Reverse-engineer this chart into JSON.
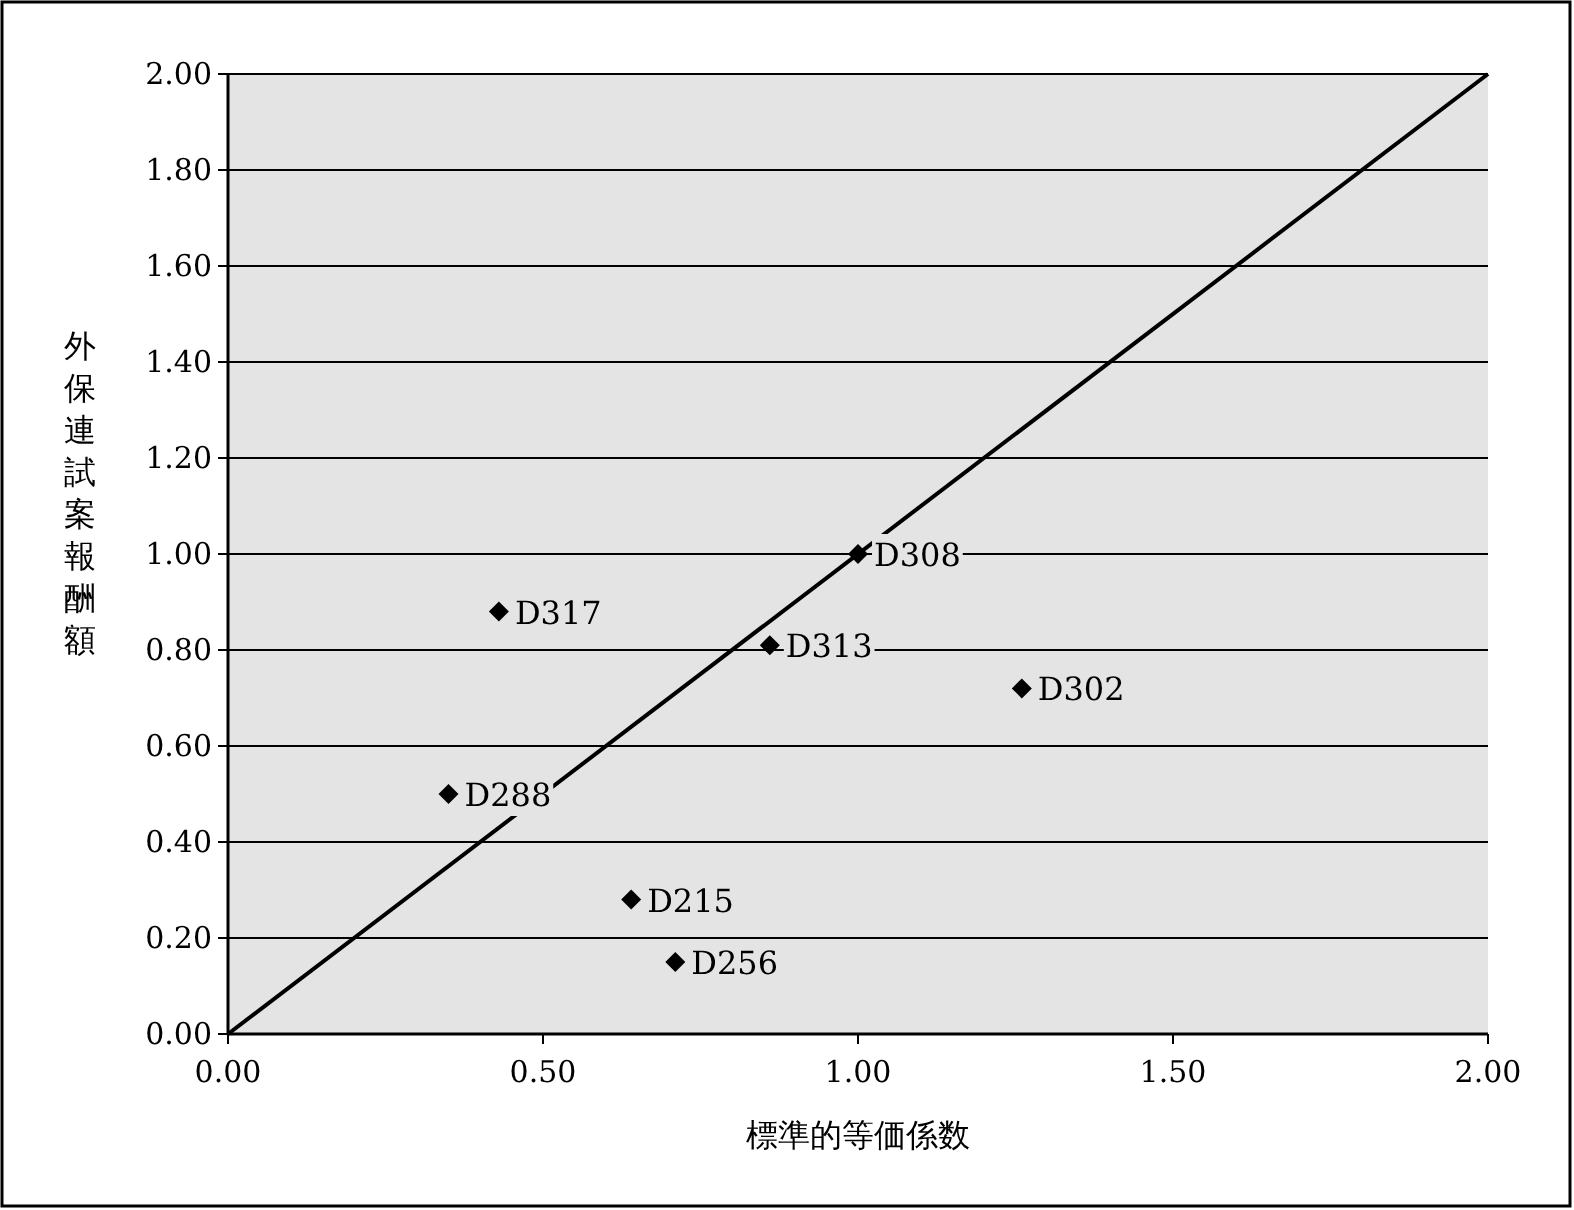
{
  "chart_data": {
    "type": "scatter",
    "xlabel": "標準的等価係数",
    "ylabel": "外保連試案報酬額",
    "xlim": [
      0,
      2
    ],
    "ylim": [
      0,
      2
    ],
    "xticks": [
      {
        "value": 0,
        "label": "0.00"
      },
      {
        "value": 0.5,
        "label": "0.50"
      },
      {
        "value": 1,
        "label": "1.00"
      },
      {
        "value": 1.5,
        "label": "1.50"
      },
      {
        "value": 2,
        "label": "2.00"
      }
    ],
    "yticks": [
      {
        "value": 0,
        "label": "0.00"
      },
      {
        "value": 0.2,
        "label": "0.20"
      },
      {
        "value": 0.4,
        "label": "0.40"
      },
      {
        "value": 0.6,
        "label": "0.60"
      },
      {
        "value": 0.8,
        "label": "0.80"
      },
      {
        "value": 1,
        "label": "1.00"
      },
      {
        "value": 1.2,
        "label": "1.20"
      },
      {
        "value": 1.4,
        "label": "1.40"
      },
      {
        "value": 1.6,
        "label": "1.60"
      },
      {
        "value": 1.8,
        "label": "1.80"
      },
      {
        "value": 2,
        "label": "2.00"
      }
    ],
    "grid": "y",
    "series": [
      {
        "color": "#000000",
        "marker": "diamond",
        "x": [
          0.43,
          1.0,
          0.86,
          1.26,
          0.35,
          0.64,
          0.71
        ],
        "values": [
          0.88,
          1.0,
          0.81,
          0.72,
          0.5,
          0.28,
          0.15
        ]
      },
      {
        "type": "line",
        "color": "#000000",
        "line_style": "solid",
        "x": [
          0,
          2
        ],
        "values": [
          0,
          2
        ]
      }
    ],
    "annotations": [
      {
        "text": "D317",
        "x": 0.43,
        "y": 0.88
      },
      {
        "text": "D308",
        "x": 1.0,
        "y": 1.0
      },
      {
        "text": "D313",
        "x": 0.86,
        "y": 0.81
      },
      {
        "text": "D302",
        "x": 1.26,
        "y": 0.72
      },
      {
        "text": "D288",
        "x": 0.35,
        "y": 0.5
      },
      {
        "text": "D215",
        "x": 0.64,
        "y": 0.28
      },
      {
        "text": "D256",
        "x": 0.71,
        "y": 0.15
      }
    ]
  }
}
